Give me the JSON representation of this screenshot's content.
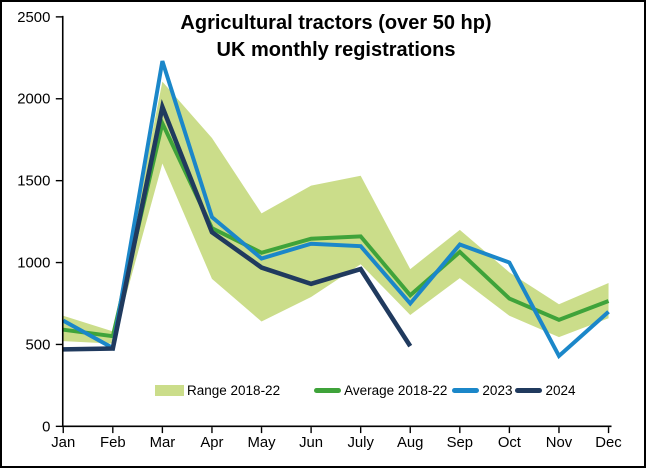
{
  "frame": {
    "background": "#ffffff",
    "border_color": "#000000",
    "text_color": "#000000"
  },
  "chart_data": {
    "type": "line",
    "title": "Agricultural tractors (over 50 hp) UK monthly registrations",
    "title_lines": [
      "Agricultural tractors (over 50 hp)",
      "UK monthly registrations"
    ],
    "xlabel": "",
    "ylabel": "",
    "categories": [
      "Jan",
      "Feb",
      "Mar",
      "Apr",
      "May",
      "Jun",
      "July",
      "Aug",
      "Sep",
      "Oct",
      "Nov",
      "Dec"
    ],
    "y_ticks": [
      0,
      500,
      1000,
      1500,
      2000,
      2500
    ],
    "ylim": [
      0,
      2500
    ],
    "grid": false,
    "legend_position": "bottom-inside",
    "axis_color": "#000000",
    "series": [
      {
        "name": "Range 2018-22",
        "type": "band",
        "color": "#cbdd8a",
        "min": [
          520,
          505,
          1605,
          900,
          640,
          790,
          990,
          680,
          905,
          675,
          545,
          660
        ],
        "max": [
          675,
          580,
          2105,
          1760,
          1300,
          1470,
          1530,
          960,
          1200,
          940,
          745,
          875
        ]
      },
      {
        "name": "Average 2018-22",
        "type": "line",
        "color": "#3fa33a",
        "values": [
          590,
          550,
          1850,
          1210,
          1060,
          1145,
          1160,
          800,
          1065,
          780,
          650,
          765
        ]
      },
      {
        "name": "2023",
        "type": "line",
        "color": "#1b87c9",
        "values": [
          645,
          478,
          2230,
          1277,
          1025,
          1115,
          1100,
          750,
          1110,
          1000,
          430,
          700
        ]
      },
      {
        "name": "2024",
        "type": "line",
        "color": "#203a5e",
        "values": [
          470,
          475,
          1950,
          1185,
          970,
          870,
          960,
          490
        ]
      }
    ]
  }
}
